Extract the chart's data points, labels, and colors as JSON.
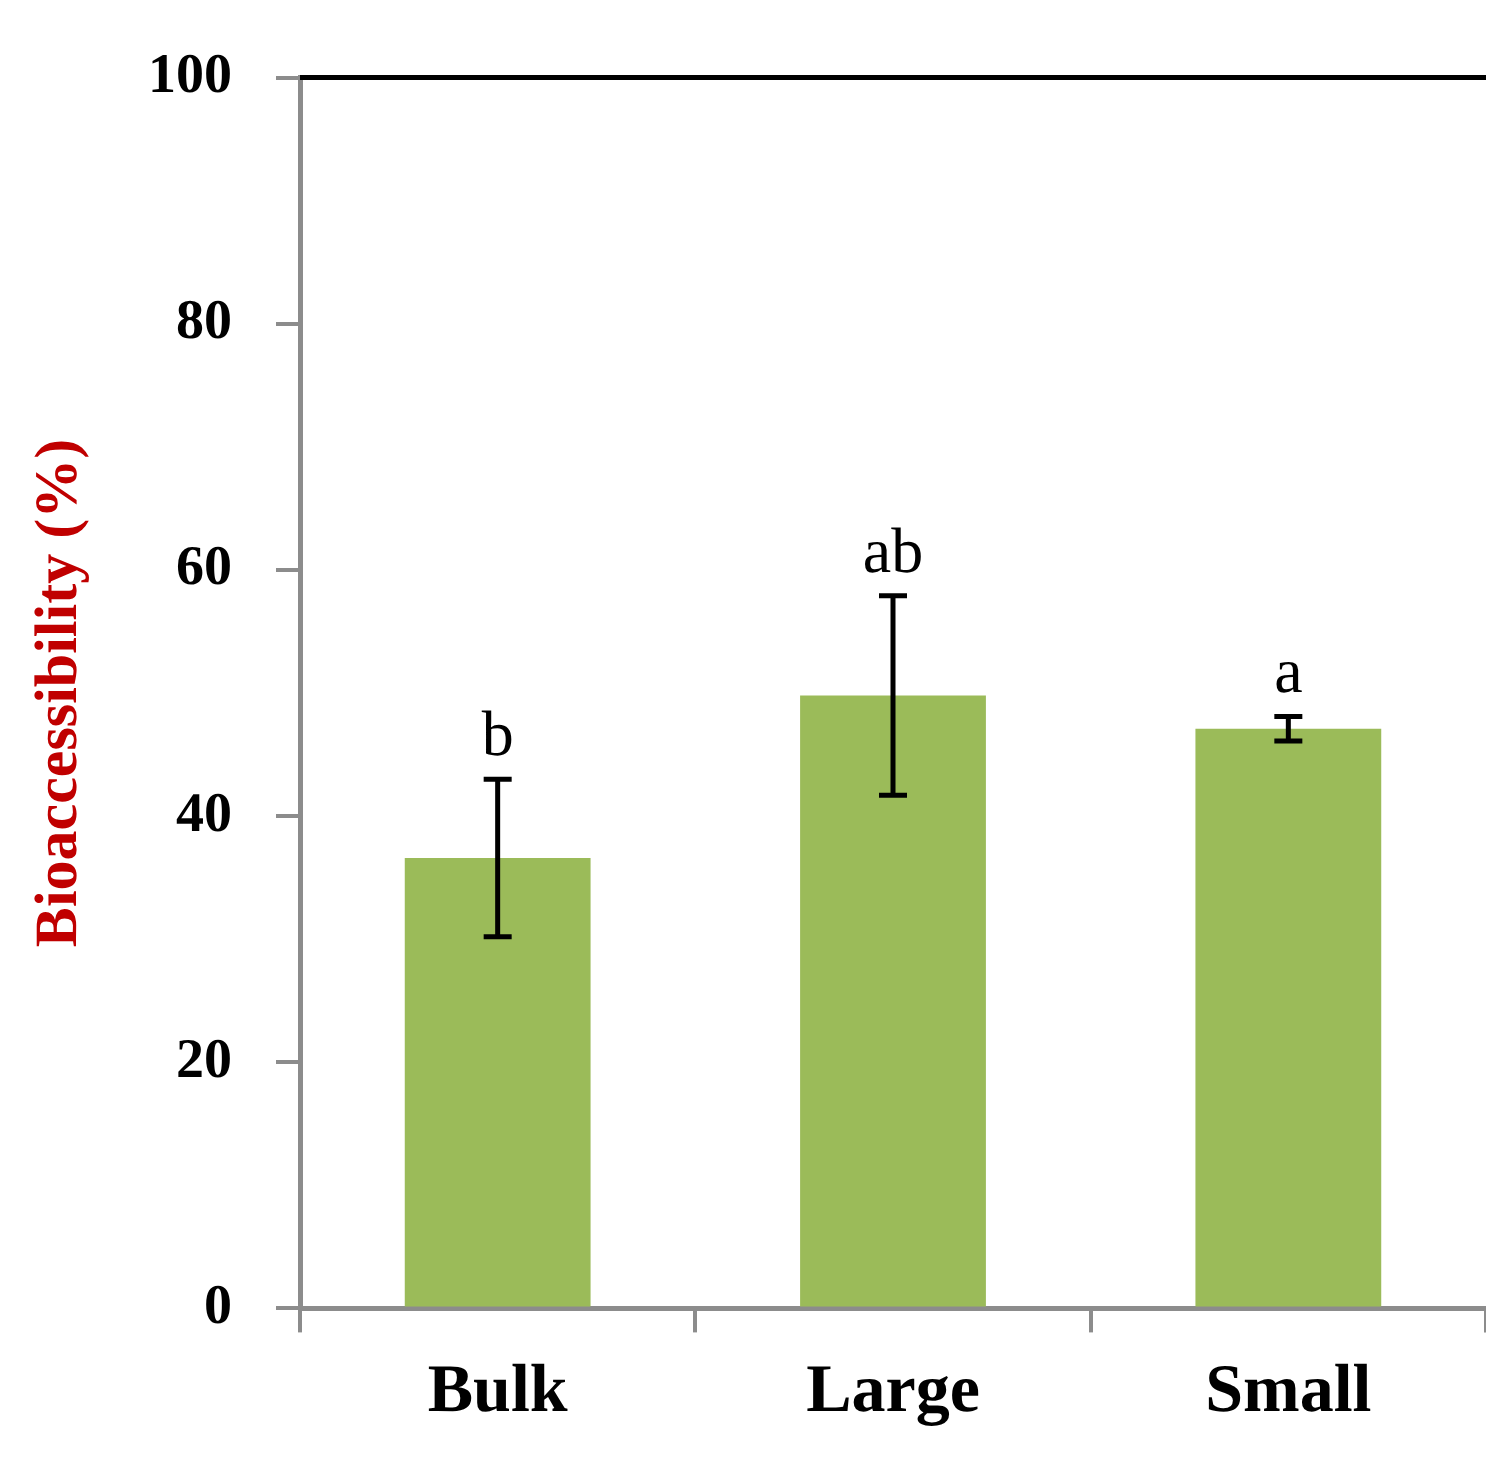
{
  "chart_data": {
    "type": "bar",
    "ylabel": "Bioaccessibility (%)",
    "categories": [
      "Bulk",
      "Large",
      "Small"
    ],
    "values": [
      36.6,
      49.8,
      47.1
    ],
    "errors": [
      6.4,
      8.1,
      1.0
    ],
    "color": "#9bbb59",
    "ylim": [
      0,
      100
    ],
    "yticks": [
      0,
      20,
      40,
      60,
      80,
      100
    ],
    "annotations": [
      {
        "text": "b",
        "x": "Bulk",
        "y": 43.0
      },
      {
        "text": "ab",
        "x": "Large",
        "y": 57.9
      },
      {
        "text": "a",
        "x": "Small",
        "y": 48.1
      }
    ]
  }
}
